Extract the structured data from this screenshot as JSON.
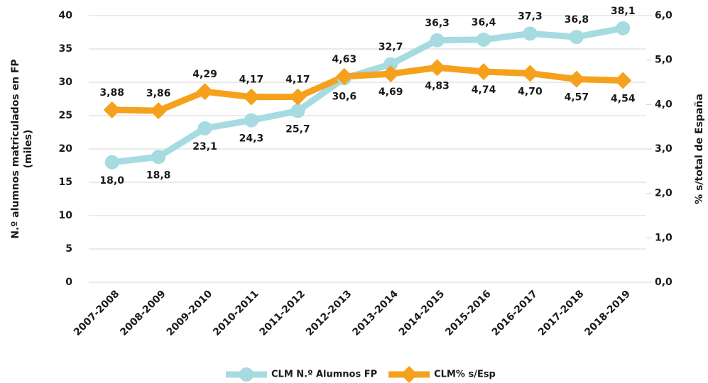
{
  "chart_data": {
    "type": "line",
    "categories": [
      "2007-2008",
      "2008-2009",
      "2009-2010",
      "2010-2011",
      "2011-2012",
      "2012-2013",
      "2013-2014",
      "2014-2015",
      "2015-2016",
      "2016-2017",
      "2017-2018",
      "2018-2019"
    ],
    "series": [
      {
        "name": "CLM N.º Alumnos FP",
        "color": "#a6dbe1",
        "marker": "circle",
        "values": [
          18.0,
          18.8,
          23.1,
          24.3,
          25.7,
          30.6,
          32.7,
          36.3,
          36.4,
          37.3,
          36.8,
          38.1
        ],
        "value_labels": [
          "18,0",
          "18,8",
          "23,1",
          "24,3",
          "25,7",
          "30,6",
          "32,7",
          "36,3",
          "36,4",
          "37,3",
          "36,8",
          "38,1"
        ]
      },
      {
        "name": "CLM% s/Esp",
        "color": "#f5a11c",
        "marker": "diamond",
        "axis": "y2",
        "values": [
          3.88,
          3.86,
          4.29,
          4.17,
          4.17,
          4.63,
          4.69,
          4.83,
          4.74,
          4.7,
          4.57,
          4.54
        ],
        "value_labels": [
          "3,88",
          "3,86",
          "4,29",
          "4,17",
          "4,17",
          "4,63",
          "4,69",
          "4,83",
          "4,74",
          "4,70",
          "4,57",
          "4,54"
        ]
      }
    ],
    "ylabel": [
      "N.º alumnos matriculados en FP",
      "(miles)"
    ],
    "y2label": "% s/total de España",
    "ylim": [
      0,
      40
    ],
    "yticks": [
      0,
      5,
      10,
      15,
      20,
      25,
      30,
      35,
      40
    ],
    "y2lim": [
      0,
      6
    ],
    "y2ticks": [
      {
        "value": 0,
        "label": "0,0"
      },
      {
        "value": 1,
        "label": "1,0"
      },
      {
        "value": 2,
        "label": "2,0"
      },
      {
        "value": 3,
        "label": "3,0"
      },
      {
        "value": 4,
        "label": "4,0"
      },
      {
        "value": 5,
        "label": "5,0"
      },
      {
        "value": 6,
        "label": "6,0"
      }
    ],
    "grid": true,
    "legend": "bottom"
  }
}
